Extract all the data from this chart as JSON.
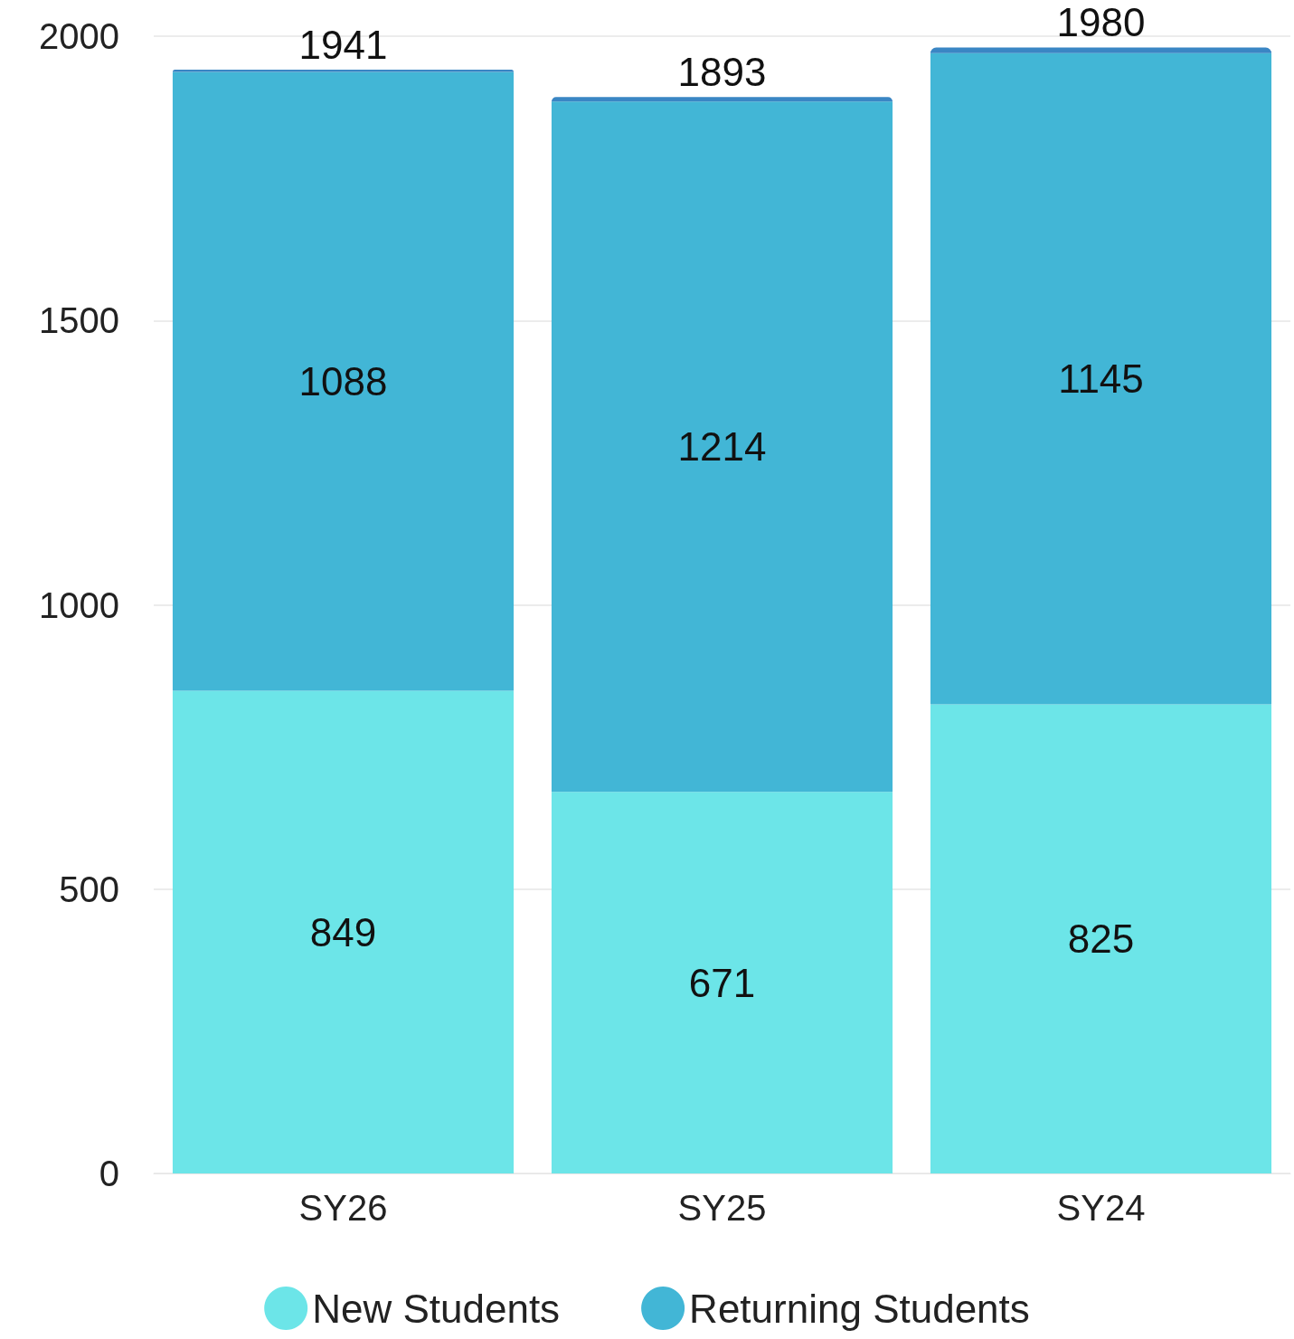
{
  "chart_data": {
    "type": "bar",
    "stacked": true,
    "categories": [
      "SY26",
      "SY25",
      "SY24"
    ],
    "series": [
      {
        "name": "New Students",
        "color": "#6ce5e8",
        "values": [
          849,
          671,
          825
        ],
        "value_labels": [
          "849",
          "671",
          "825"
        ]
      },
      {
        "name": "Returning Students",
        "color": "#42b6d6",
        "values": [
          1088,
          1214,
          1145
        ],
        "value_labels": [
          "1088",
          "1214",
          "1145"
        ]
      },
      {
        "color": "#3a86c4",
        "values": [
          4,
          8,
          10
        ]
      }
    ],
    "totals": [
      "1941",
      "1893",
      "1980"
    ],
    "ylim": [
      0,
      2000
    ],
    "yticks": [
      0,
      500,
      1000,
      1500,
      2000
    ],
    "grid": "y",
    "legend": "bottom"
  }
}
